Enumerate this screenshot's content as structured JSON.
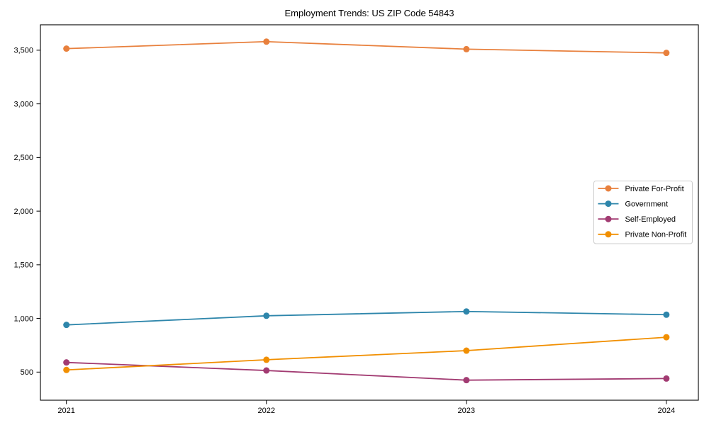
{
  "chart_data": {
    "type": "line",
    "title": "Employment Trends: US ZIP Code 54843",
    "xlabel": "",
    "ylabel": "",
    "x": [
      2021,
      2022,
      2023,
      2024
    ],
    "x_tick_labels": [
      "2021",
      "2022",
      "2023",
      "2024"
    ],
    "y_ticks": [
      500,
      1000,
      1500,
      2000,
      2500,
      3000,
      3500
    ],
    "y_tick_labels": [
      "500",
      "1,000",
      "1,500",
      "2,000",
      "2,500",
      "3,000",
      "3,500"
    ],
    "xlim": [
      2020.87,
      2024.16
    ],
    "ylim": [
      238,
      3737
    ],
    "grid": false,
    "legend_position": "center-right",
    "series": [
      {
        "name": "Private For-Profit",
        "color": "#E8803D",
        "values": [
          3515,
          3580,
          3510,
          3475
        ]
      },
      {
        "name": "Government",
        "color": "#2E86AB",
        "values": [
          940,
          1025,
          1065,
          1035
        ]
      },
      {
        "name": "Self-Employed",
        "color": "#A23B72",
        "values": [
          590,
          515,
          425,
          440
        ]
      },
      {
        "name": "Private Non-Profit",
        "color": "#F18F01",
        "values": [
          520,
          615,
          700,
          825
        ]
      }
    ],
    "marker": "circle",
    "line_width": 1.8,
    "marker_radius": 4.5
  }
}
